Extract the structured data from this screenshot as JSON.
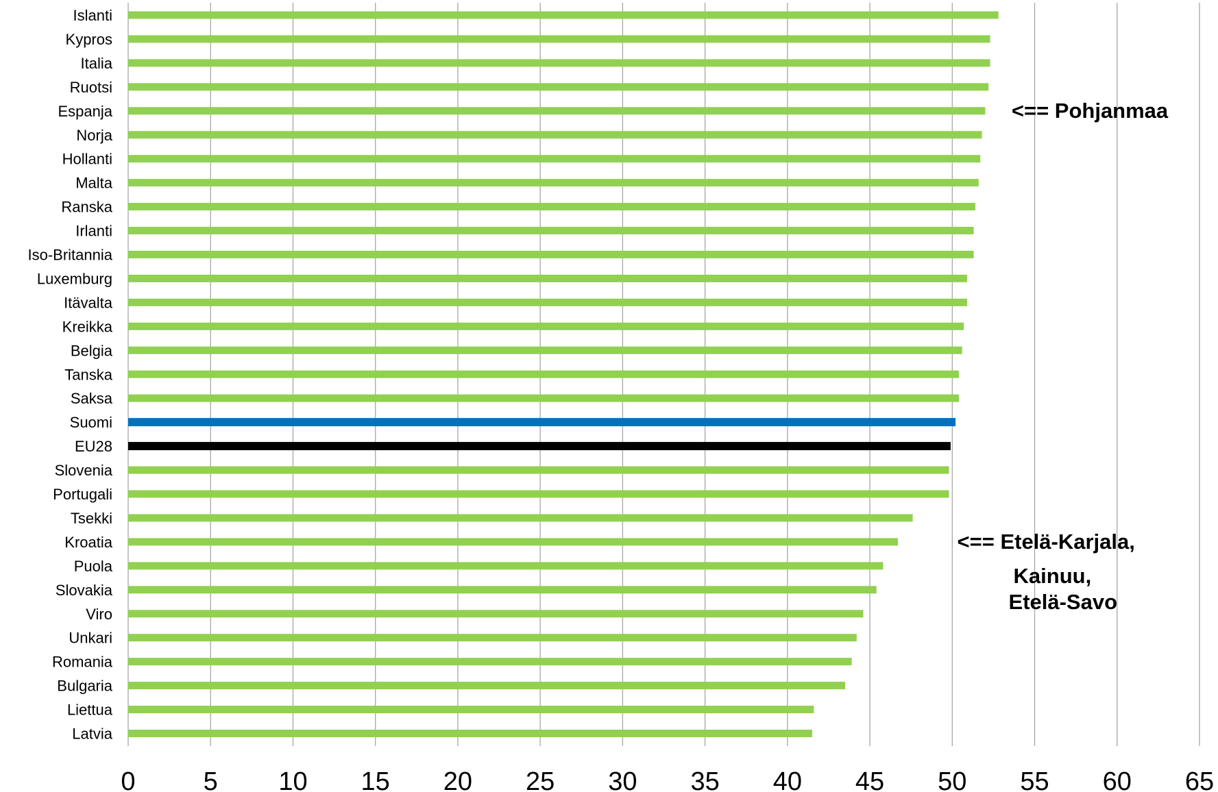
{
  "chart_data": {
    "type": "bar",
    "orientation": "horizontal",
    "title": "",
    "xlabel": "",
    "ylabel": "",
    "xlim": [
      0,
      65
    ],
    "x_ticks": [
      "0",
      "5",
      "10",
      "15",
      "20",
      "25",
      "30",
      "35",
      "40",
      "45",
      "50",
      "55",
      "60",
      "65"
    ],
    "grid": "vertical",
    "legend": "none",
    "categories": [
      "Islanti",
      "Kypros",
      "Italia",
      "Ruotsi",
      "Espanja",
      "Norja",
      "Hollanti",
      "Malta",
      "Ranska",
      "Irlanti",
      "Iso-Britannia",
      "Luxemburg",
      "Itävalta",
      "Kreikka",
      "Belgia",
      "Tanska",
      "Saksa",
      "Suomi",
      "EU28",
      "Slovenia",
      "Portugali",
      "Tsekki",
      "Kroatia",
      "Puola",
      "Slovakia",
      "Viro",
      "Unkari",
      "Romania",
      "Bulgaria",
      "Liettua",
      "Latvia"
    ],
    "values": [
      52.8,
      52.3,
      52.3,
      52.2,
      52.0,
      51.8,
      51.7,
      51.6,
      51.4,
      51.3,
      51.3,
      50.9,
      50.9,
      50.7,
      50.6,
      50.4,
      50.4,
      50.2,
      49.9,
      49.8,
      49.8,
      47.6,
      46.7,
      45.8,
      45.4,
      44.6,
      44.2,
      43.9,
      43.5,
      41.6,
      41.5
    ],
    "colors": {
      "default": "#92D050",
      "Suomi": "#0070C0",
      "EU28": "#000000",
      "gridline": "#A6A6A6"
    },
    "annotations": [
      {
        "lines": [
          "<== Pohjanmaa"
        ],
        "x_value": 53.6,
        "near_category": "Espanja"
      },
      {
        "lines": [
          "<== Etelä-Karjala,",
          "Kainuu,",
          "Etelä-Savo"
        ],
        "x_value": 50.3,
        "near_category": "Kroatia"
      }
    ]
  }
}
